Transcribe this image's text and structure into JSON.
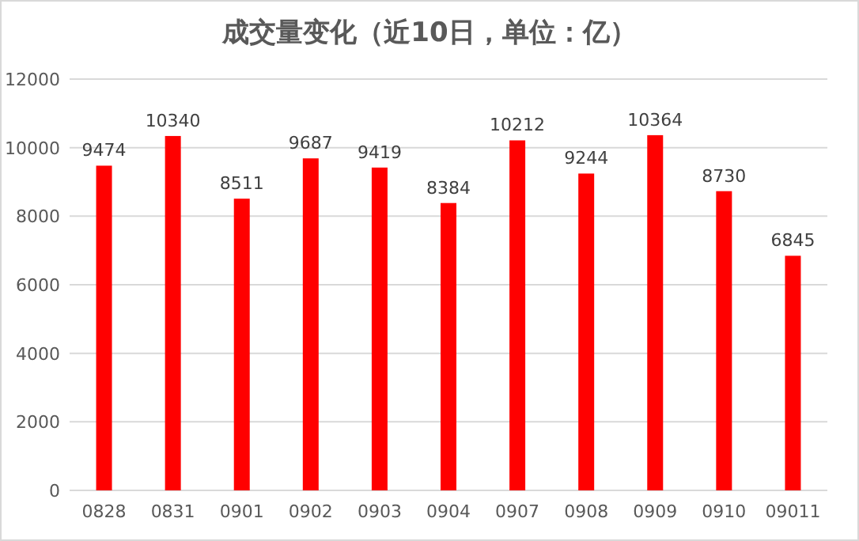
{
  "chart_data": {
    "type": "bar",
    "title": "成交量变化（近10日，单位：亿）",
    "categories": [
      "0828",
      "0831",
      "0901",
      "0902",
      "0903",
      "0904",
      "0907",
      "0908",
      "0909",
      "0910",
      "09011"
    ],
    "values": [
      9474,
      10340,
      8511,
      9687,
      9419,
      8384,
      10212,
      9244,
      10364,
      8730,
      6845
    ],
    "color": "#ff0000",
    "ylim": [
      0,
      12000
    ],
    "yticks": [
      0,
      2000,
      4000,
      6000,
      8000,
      10000,
      12000
    ],
    "grid": "y",
    "data_labels": true
  }
}
